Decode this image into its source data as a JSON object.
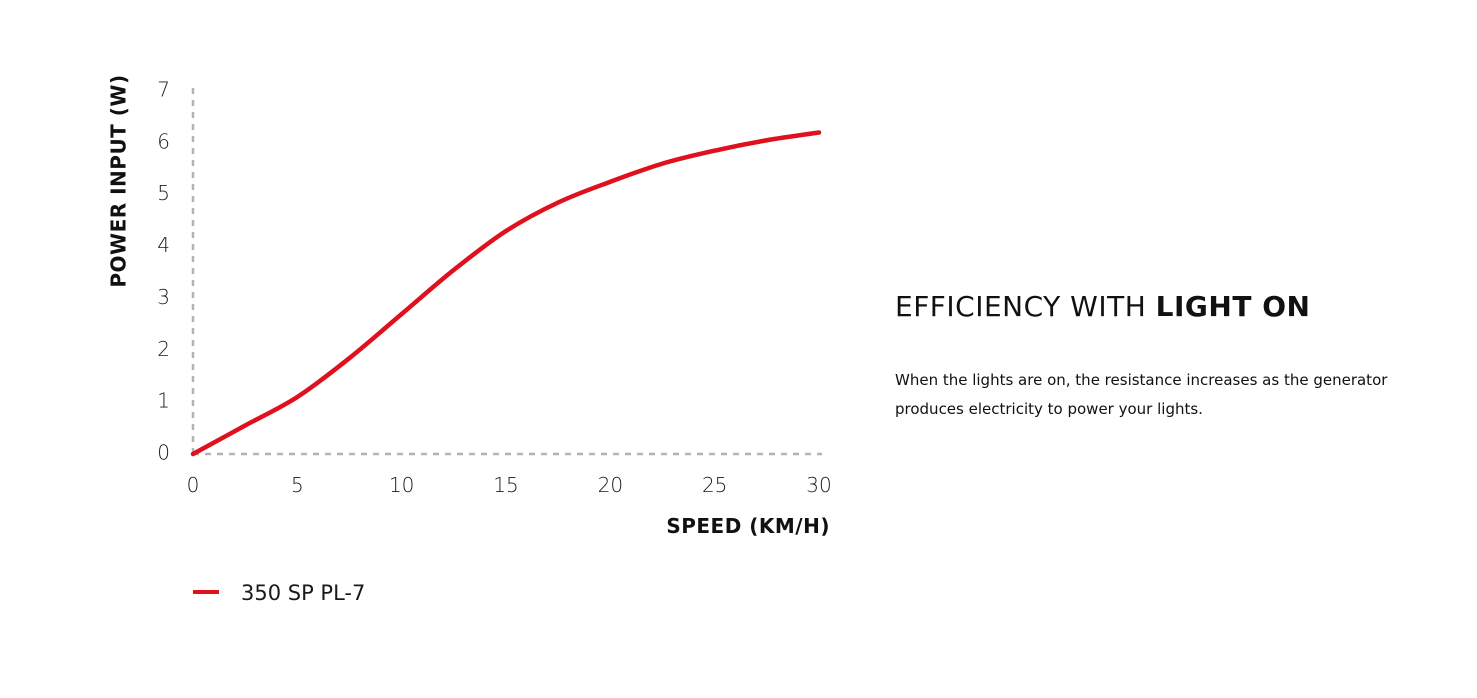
{
  "chart_data": {
    "type": "line",
    "xlabel": "SPEED (KM/H)",
    "ylabel": "POWER INPUT (W)",
    "xlim": [
      0,
      30
    ],
    "ylim": [
      0,
      7
    ],
    "x_ticks": [
      "0",
      "5",
      "10",
      "15",
      "20",
      "25",
      "30"
    ],
    "y_ticks": [
      "0",
      "1",
      "2",
      "3",
      "4",
      "5",
      "6",
      "7"
    ],
    "grid": false,
    "legend_position": "bottom-left",
    "series": [
      {
        "name": "350 SP PL-7",
        "color": "#e0101e",
        "x": [
          0,
          2.5,
          5,
          7.5,
          10,
          12.5,
          15,
          17.5,
          20,
          22.5,
          25,
          27.5,
          30
        ],
        "y": [
          0,
          0.55,
          1.1,
          1.85,
          2.7,
          3.55,
          4.3,
          4.85,
          5.25,
          5.6,
          5.85,
          6.05,
          6.2
        ]
      }
    ]
  },
  "info": {
    "heading_regular": "EFFICIENCY WITH ",
    "heading_bold": "LIGHT ON",
    "description": "When the lights are on, the resistance increases as the generator produces electricity to power your lights."
  }
}
